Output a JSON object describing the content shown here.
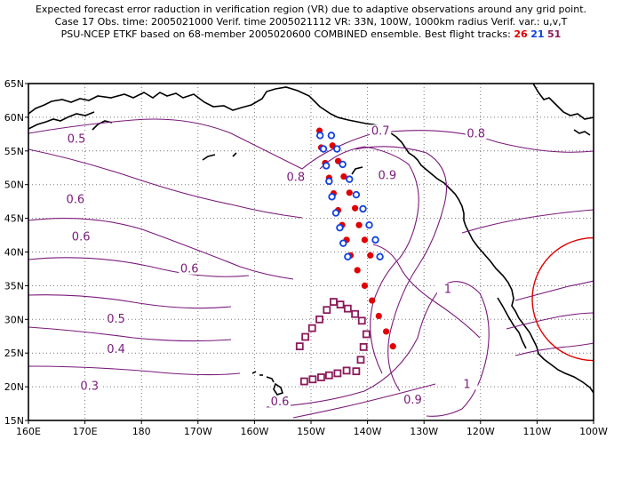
{
  "header": {
    "line1": "Expected forecast error raduction in verification region (VR) due to adaptive observations around any grid point.",
    "line2": "Case 17   Obs. time: 2005021000   Verif. time 2005021112   VR: 33N, 100W, 1000km radius   Verif. var.: u,v,T",
    "line3_prefix": "PSU-NCEP ETKF based on 68-member 2005020600 COMBINED ensemble.   Best flight tracks:",
    "tracks": [
      {
        "id": "26",
        "color": "#e00000"
      },
      {
        "id": "21",
        "color": "#1040e0"
      },
      {
        "id": "51",
        "color": "#8b1a5a"
      }
    ]
  },
  "map": {
    "lon_range": [
      160,
      260
    ],
    "lat_range": [
      15,
      65
    ],
    "lon_ticks": [
      "160E",
      "170E",
      "180",
      "170W",
      "160W",
      "150W",
      "140W",
      "130W",
      "120W",
      "110W",
      "100W"
    ],
    "lat_ticks": [
      "15N",
      "20N",
      "25N",
      "30N",
      "35N",
      "40N",
      "45N",
      "50N",
      "55N",
      "60N",
      "65N"
    ],
    "grid": true,
    "contour_color": "#7a1a7a",
    "contour_labels": [
      {
        "text": "0.5",
        "lon": 168.5,
        "lat": 56.5
      },
      {
        "text": "0.6",
        "lon": 168.3,
        "lat": 47.5
      },
      {
        "text": "0.6",
        "lon": 169.3,
        "lat": 42
      },
      {
        "text": "0.6",
        "lon": 188.5,
        "lat": 37.2
      },
      {
        "text": "0.5",
        "lon": 175.5,
        "lat": 29.8
      },
      {
        "text": "0.4",
        "lon": 175.5,
        "lat": 25.3
      },
      {
        "text": "0.3",
        "lon": 170.8,
        "lat": 19.8
      },
      {
        "text": "0.6",
        "lon": 204.5,
        "lat": 17.5
      },
      {
        "text": "0.8",
        "lon": 207.3,
        "lat": 50.8
      },
      {
        "text": "0.7",
        "lon": 222.3,
        "lat": 57.7
      },
      {
        "text": "0.8",
        "lon": 239.2,
        "lat": 57.3
      },
      {
        "text": "0.9",
        "lon": 223.5,
        "lat": 51.1
      },
      {
        "text": "1",
        "lon": 234.2,
        "lat": 34.2
      },
      {
        "text": "1",
        "lon": 237.6,
        "lat": 20.1
      },
      {
        "text": "0.9",
        "lon": 228.0,
        "lat": 17.8
      }
    ],
    "verification_region": {
      "center_lat": 33,
      "center_lon": 260,
      "radius_km": 1000,
      "color": "#e00000"
    },
    "track_26": [
      [
        211.5,
        58
      ],
      [
        211.8,
        55.5
      ],
      [
        212.5,
        53.2
      ],
      [
        213.2,
        51
      ],
      [
        214,
        48.7
      ],
      [
        214.8,
        46.2
      ],
      [
        215.5,
        44
      ],
      [
        216.3,
        41.8
      ],
      [
        217,
        39.5
      ],
      [
        218.2,
        37.3
      ],
      [
        219.5,
        35
      ],
      [
        220.8,
        32.8
      ],
      [
        222,
        30.5
      ],
      [
        223.3,
        28.2
      ],
      [
        224.5,
        26
      ],
      [
        213.8,
        55.8
      ],
      [
        214.8,
        53.5
      ],
      [
        215.8,
        51.2
      ],
      [
        216.8,
        48.8
      ],
      [
        217.8,
        46.5
      ],
      [
        218.5,
        44
      ],
      [
        219.5,
        41.8
      ],
      [
        220.5,
        39.5
      ]
    ],
    "track_21": [
      [
        211.6,
        57.3
      ],
      [
        212.2,
        55.3
      ],
      [
        212.7,
        52.8
      ],
      [
        213.2,
        50.5
      ],
      [
        213.7,
        48.2
      ],
      [
        214.4,
        45.8
      ],
      [
        215.1,
        43.6
      ],
      [
        215.7,
        41.3
      ],
      [
        216.5,
        39.3
      ],
      [
        213.6,
        57.3
      ],
      [
        214.6,
        55.3
      ],
      [
        215.6,
        53
      ],
      [
        216.8,
        50.8
      ],
      [
        218,
        48.5
      ],
      [
        219.2,
        46.4
      ],
      [
        220.3,
        44
      ],
      [
        221.4,
        41.8
      ],
      [
        222.2,
        39.3
      ]
    ],
    "track_51": [
      [
        208,
        26
      ],
      [
        209,
        27.4
      ],
      [
        210.2,
        28.7
      ],
      [
        211.5,
        30
      ],
      [
        212.8,
        31.4
      ],
      [
        214,
        32.6
      ],
      [
        215.2,
        32.2
      ],
      [
        216.5,
        31.6
      ],
      [
        217.8,
        30.8
      ],
      [
        219,
        29.8
      ],
      [
        219.8,
        27.8
      ],
      [
        219.3,
        25.9
      ],
      [
        218.8,
        24
      ],
      [
        218,
        22.3
      ],
      [
        216.3,
        22.4
      ],
      [
        214.7,
        22
      ],
      [
        213.2,
        21.7
      ],
      [
        211.8,
        21.4
      ],
      [
        210.3,
        21.1
      ],
      [
        208.8,
        20.8
      ]
    ]
  }
}
